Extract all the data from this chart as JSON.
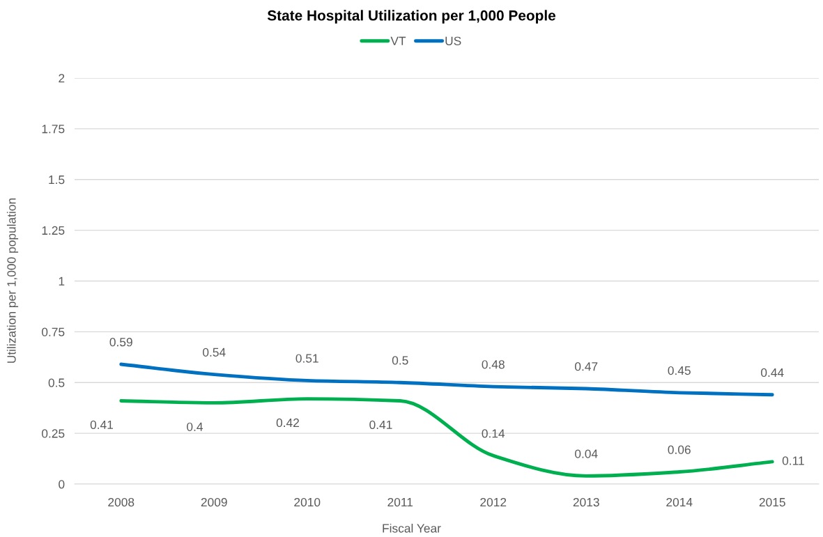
{
  "chart_data": {
    "type": "line",
    "title": "State Hospital Utilization per 1,000 People",
    "xlabel": "Fiscal Year",
    "ylabel": "Utilization per 1,000 population",
    "categories": [
      "2008",
      "2009",
      "2010",
      "2011",
      "2012",
      "2013",
      "2014",
      "2015"
    ],
    "series": [
      {
        "name": "VT",
        "color": "#00b050",
        "values": [
          0.41,
          0.4,
          0.42,
          0.41,
          0.14,
          0.04,
          0.06,
          0.11
        ]
      },
      {
        "name": "US",
        "color": "#0070c0",
        "values": [
          0.59,
          0.54,
          0.51,
          0.5,
          0.48,
          0.47,
          0.45,
          0.44
        ]
      }
    ],
    "ylim": [
      0,
      2
    ],
    "yticks": [
      0,
      0.25,
      0.5,
      0.75,
      1,
      1.25,
      1.5,
      1.75,
      2
    ],
    "grid": "y",
    "legend": "top",
    "data_labels": true,
    "line_style": "solid"
  }
}
